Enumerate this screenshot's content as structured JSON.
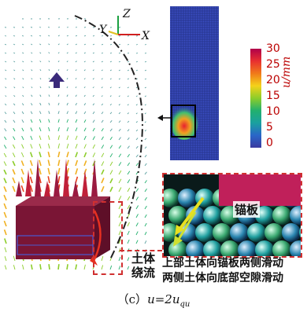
{
  "axes": {
    "z": "Z",
    "y": "Y",
    "x": "X"
  },
  "colorbar": {
    "ticks": [
      "30",
      "25",
      "20",
      "15",
      "10",
      "5",
      "0"
    ],
    "label": "u/mm",
    "colors": [
      "#b0004a",
      "#e83030",
      "#f07a1a",
      "#f4d21a",
      "#8ccd2a",
      "#22b06e",
      "#1aa0a0",
      "#2a66c8",
      "#3a3aa0"
    ]
  },
  "annotations": {
    "anchor_plate": "锚板",
    "soil_flow_line1": "土体",
    "soil_flow_line2": "绕流",
    "desc_line1": "上部土体向锚板两侧滑动",
    "desc_line2": "两侧土体向底部空隙滑动"
  },
  "caption": {
    "label": "（c）",
    "eq": "u=2u",
    "sub": "qu"
  },
  "icons": [
    "axis-triad-icon",
    "up-arrow-icon",
    "curved-arrow-icon"
  ]
}
